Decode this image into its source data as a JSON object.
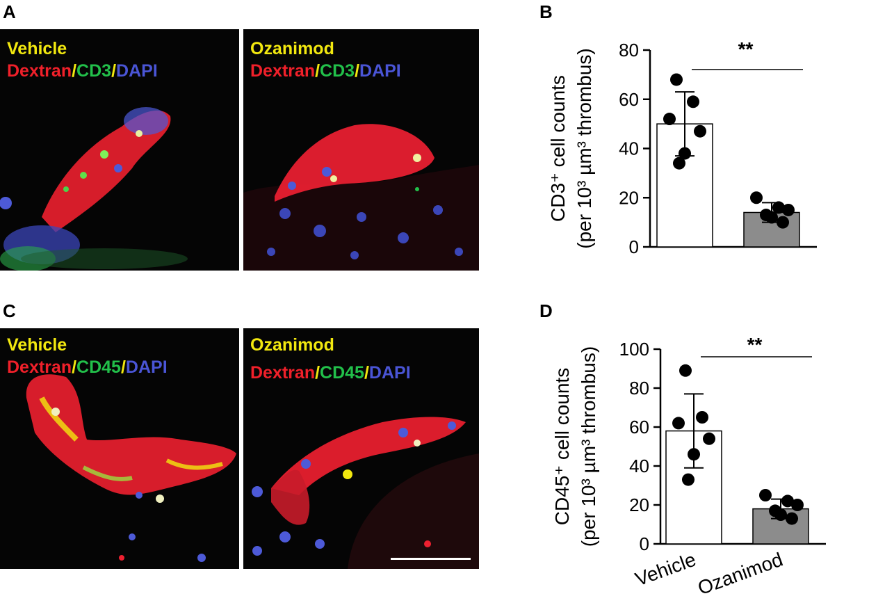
{
  "panels": {
    "a": {
      "letter": "A",
      "left": {
        "treatment": "Vehicle",
        "stain": [
          "Dextran",
          "CD3",
          "DAPI"
        ]
      },
      "right": {
        "treatment": "Ozanimod",
        "stain": [
          "Dextran",
          "CD3",
          "DAPI"
        ]
      }
    },
    "c": {
      "letter": "C",
      "left": {
        "treatment": "Vehicle",
        "stain": [
          "Dextran",
          "CD45",
          "DAPI"
        ]
      },
      "right": {
        "treatment": "Ozanimod",
        "stain": [
          "Dextran",
          "CD45",
          "DAPI"
        ]
      }
    },
    "b": {
      "letter": "B"
    },
    "d": {
      "letter": "D"
    },
    "separator": "/"
  },
  "colors": {
    "dextran": "#f0202a",
    "cd_marker": "#22c04a",
    "dapi": "#4a55d6",
    "treatment_label": "#f2e80f",
    "vehicle_bar": "#ffffff",
    "ozanimod_bar": "#8c8c8c"
  },
  "chart_data": [
    {
      "type": "bar",
      "panel": "B",
      "categories": [
        "Vehicle",
        "Ozanimod"
      ],
      "values": [
        50,
        14
      ],
      "error": [
        13,
        4
      ],
      "points": [
        [
          68,
          59,
          52,
          47,
          38,
          34
        ],
        [
          20,
          16,
          15,
          13,
          12,
          10
        ]
      ],
      "ylabel_lines": [
        "CD3⁺ cell counts",
        "(per 10³ µm³ thrombus)"
      ],
      "yticks": [
        0,
        20,
        40,
        60,
        80
      ],
      "ylim": [
        0,
        80
      ],
      "significance": "**",
      "show_xticklabels": false
    },
    {
      "type": "bar",
      "panel": "D",
      "categories": [
        "Vehicle",
        "Ozanimod"
      ],
      "values": [
        58,
        18
      ],
      "error": [
        19,
        5
      ],
      "points": [
        [
          89,
          65,
          62,
          54,
          46,
          33
        ],
        [
          25,
          22,
          20,
          17,
          15,
          13
        ]
      ],
      "ylabel_lines": [
        "CD45⁺ cell counts",
        "(per 10³ µm³ thrombus)"
      ],
      "yticks": [
        0,
        20,
        40,
        60,
        80,
        100
      ],
      "ylim": [
        0,
        100
      ],
      "significance": "**",
      "show_xticklabels": true
    }
  ]
}
